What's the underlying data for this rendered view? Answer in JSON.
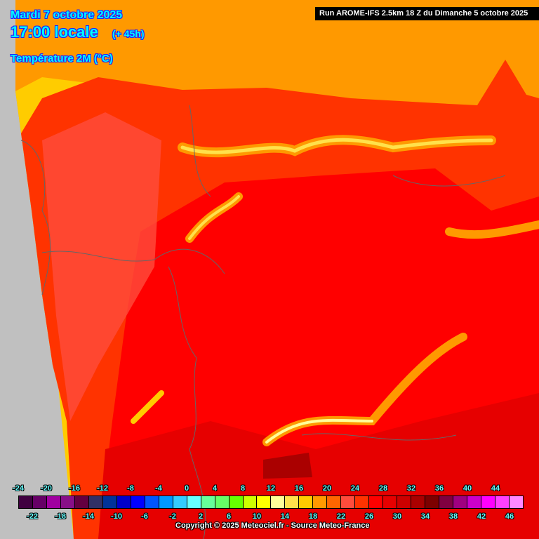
{
  "header": {
    "date": "Mardi 7 octobre 2025",
    "time": "17:00 locale",
    "lead": "(+ 45h)",
    "variable": "Température 2M (°C)",
    "run": "Run AROME-IFS 2.5km 18 Z du Dimanche 5 octobre 2025"
  },
  "legend": {
    "top_labels": [
      "-24",
      "-20",
      "-16",
      "-12",
      "-8",
      "-4",
      "0",
      "4",
      "8",
      "12",
      "16",
      "20",
      "24",
      "28",
      "32",
      "36",
      "40",
      "44"
    ],
    "bottom_labels": [
      "-22",
      "-18",
      "-14",
      "-10",
      "-6",
      "-2",
      "2",
      "6",
      "10",
      "14",
      "18",
      "22",
      "26",
      "30",
      "34",
      "38",
      "42",
      "46"
    ],
    "colors": [
      "#400040",
      "#660066",
      "#a000a0",
      "#881088",
      "#640040",
      "#303066",
      "#003399",
      "#0000cc",
      "#0000ff",
      "#0055ff",
      "#0099ff",
      "#33ccff",
      "#66ffff",
      "#66ff99",
      "#66ff66",
      "#66ff00",
      "#ccff00",
      "#ffff00",
      "#ffff99",
      "#ffe14b",
      "#ffcc00",
      "#ff9900",
      "#ff6600",
      "#ff4c3c",
      "#ff3300",
      "#ff0000",
      "#e60000",
      "#cc0000",
      "#aa0000",
      "#7d0000",
      "#800040",
      "#a00080",
      "#cc00cc",
      "#ff00ff",
      "#ff40ff",
      "#ff88ff"
    ]
  },
  "copyright": "Copyright © 2025 Meteociel.fr - Source Meteo-France"
}
